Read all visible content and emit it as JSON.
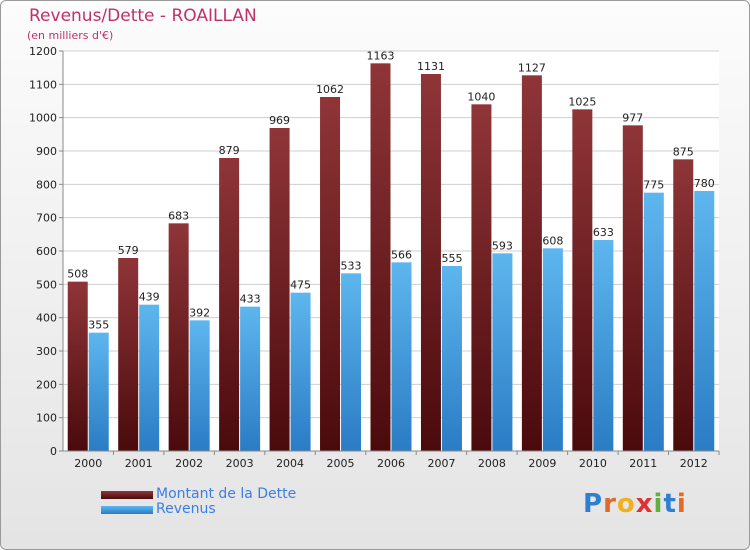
{
  "title": "Revenus/Dette - ROAILLAN",
  "subtitle": "(en milliers d'€)",
  "brand": "Proxiti",
  "colors": {
    "title": "#c0306c",
    "dette_top": "#8f3538",
    "dette_bottom": "#4a0a0c",
    "revenus_top": "#5eb6ee",
    "revenus_bottom": "#2a7cc4",
    "legend_text": "#3c7ee8"
  },
  "chart_data": {
    "type": "bar",
    "title": "Revenus/Dette - ROAILLAN",
    "ylabel": "(en milliers d'€)",
    "xlabel": "",
    "ylim": [
      0,
      1200
    ],
    "ytick_step": 100,
    "grid": true,
    "legend_position": "bottom-left",
    "categories": [
      "2000",
      "2001",
      "2002",
      "2003",
      "2004",
      "2005",
      "2006",
      "2007",
      "2008",
      "2009",
      "2010",
      "2011",
      "2012"
    ],
    "series": [
      {
        "name": "Montant de la Dette",
        "values": [
          508,
          579,
          683,
          879,
          969,
          1062,
          1163,
          1131,
          1040,
          1127,
          1025,
          977,
          875
        ]
      },
      {
        "name": "Revenus",
        "values": [
          355,
          439,
          392,
          433,
          475,
          533,
          566,
          555,
          593,
          608,
          633,
          775,
          780
        ]
      }
    ]
  }
}
